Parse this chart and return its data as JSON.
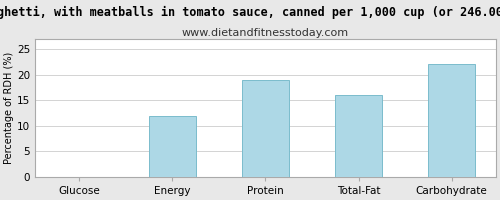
{
  "title": "ghetti, with meatballs in tomato sauce, canned per 1,000 cup (or 246.00",
  "subtitle": "www.dietandfitnesstoday.com",
  "categories": [
    "Glucose",
    "Energy",
    "Protein",
    "Total-Fat",
    "Carbohydrate"
  ],
  "values": [
    0,
    12,
    19,
    16,
    22
  ],
  "bar_color": "#add8e6",
  "bar_edge_color": "#7bbccc",
  "ylabel": "Percentage of RDH (%)",
  "ylim": [
    0,
    27
  ],
  "yticks": [
    0,
    5,
    10,
    15,
    20,
    25
  ],
  "background_color": "#e8e8e8",
  "plot_background_color": "#ffffff",
  "title_fontsize": 8.5,
  "subtitle_fontsize": 8,
  "ylabel_fontsize": 7,
  "tick_fontsize": 7.5,
  "grid_color": "#cccccc",
  "border_color": "#aaaaaa"
}
